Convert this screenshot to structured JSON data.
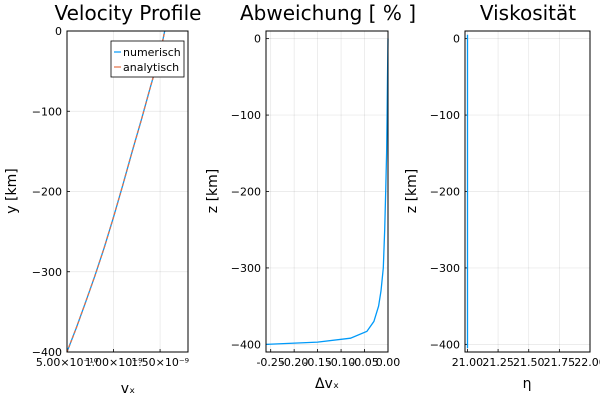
{
  "chart_data": [
    {
      "type": "line",
      "title": "Velocity Profile",
      "xlabel": "vₓ",
      "ylabel": "y [km]",
      "xlim": [
        5e-10,
        1.8e-09
      ],
      "ylim": [
        -400,
        0
      ],
      "x_tick_labels": [
        "5.00×10⁻¹⁰",
        "1.00×10⁻⁹",
        "1.50×10⁻⁹"
      ],
      "x_tick_values": [
        5e-10,
        1e-09,
        1.5e-09
      ],
      "y_ticks": [
        0,
        -100,
        -200,
        -300,
        -400
      ],
      "legend": {
        "position": "top-right"
      },
      "series": [
        {
          "name": "numerisch",
          "color": "#009af9",
          "x": [
            5e-10,
            6e-10,
            7e-10,
            8e-10,
            9e-10,
            1e-09,
            1.1e-09,
            1.2e-09,
            1.3e-09,
            1.4e-09,
            1.5e-09,
            1.55e-09
          ],
          "y": [
            -400,
            -370,
            -338,
            -305,
            -270,
            -232,
            -192,
            -150,
            -110,
            -68,
            -28,
            0
          ]
        },
        {
          "name": "analytisch",
          "color": "#e26f46",
          "x": [
            5e-10,
            6e-10,
            7e-10,
            8e-10,
            9e-10,
            1e-09,
            1.1e-09,
            1.2e-09,
            1.3e-09,
            1.4e-09,
            1.5e-09,
            1.55e-09
          ],
          "y": [
            -400,
            -370,
            -338,
            -305,
            -270,
            -232,
            -192,
            -150,
            -110,
            -68,
            -28,
            0
          ]
        }
      ]
    },
    {
      "type": "line",
      "title": "Abweichung [ % ]",
      "xlabel": "Δvₓ",
      "ylabel": "z [km]",
      "xlim": [
        -0.26,
        0.0
      ],
      "ylim": [
        -410,
        10
      ],
      "x_ticks": [
        -0.25,
        -0.2,
        -0.15,
        -0.1,
        -0.05,
        0.0
      ],
      "x_tick_labels": [
        "-0.25",
        "-0.20",
        "-0.15",
        "-0.10",
        "-0.05",
        "0.00"
      ],
      "y_ticks": [
        0,
        -100,
        -200,
        -300,
        -400
      ],
      "series": [
        {
          "name": "y1",
          "color": "#009af9",
          "x": [
            -0.26,
            -0.15,
            -0.08,
            -0.045,
            -0.03,
            -0.02,
            -0.015,
            -0.01,
            -0.007,
            -0.005,
            -0.003,
            -0.002,
            -0.001,
            0.0
          ],
          "y": [
            -400,
            -397,
            -392,
            -383,
            -370,
            -350,
            -330,
            -300,
            -250,
            -200,
            -150,
            -100,
            -50,
            0
          ]
        }
      ]
    },
    {
      "type": "line",
      "title": "Viskosität",
      "xlabel": "η",
      "ylabel": "z [km]",
      "xlim": [
        20.98,
        22.0
      ],
      "ylim": [
        -410,
        10
      ],
      "x_ticks": [
        21.0,
        21.25,
        21.5,
        21.75,
        22.0
      ],
      "x_tick_labels": [
        "21.00",
        "21.25",
        "21.50",
        "21.75",
        "22.00"
      ],
      "y_ticks": [
        0,
        -100,
        -200,
        -300,
        -400
      ],
      "series": [
        {
          "name": "y1",
          "color": "#009af9",
          "x": [
            21.0,
            21.0
          ],
          "y": [
            -405,
            5
          ]
        }
      ]
    }
  ]
}
